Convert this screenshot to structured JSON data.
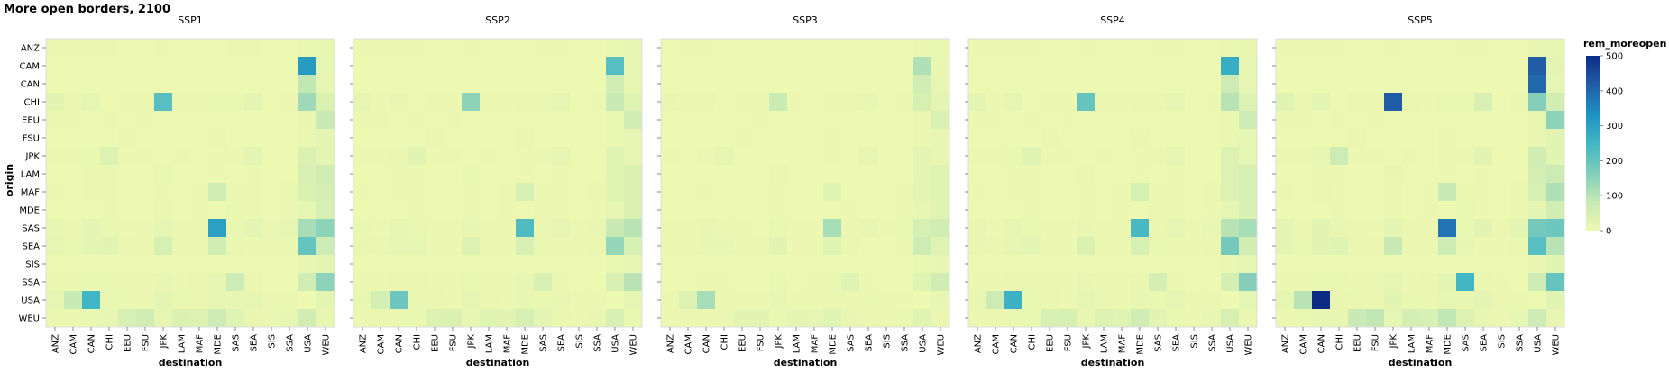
{
  "chart_data": {
    "type": "heatmap",
    "title": "More open borders, 2100",
    "facets": [
      "SSP1",
      "SSP2",
      "SSP3",
      "SSP4",
      "SSP5"
    ],
    "xlabel": "destination",
    "ylabel": "origin",
    "x_categories": [
      "ANZ",
      "CAM",
      "CAN",
      "CHI",
      "EEU",
      "FSU",
      "JPK",
      "LAM",
      "MAF",
      "MDE",
      "SAS",
      "SEA",
      "SIS",
      "SSA",
      "USA",
      "WEU"
    ],
    "y_categories": [
      "ANZ",
      "CAM",
      "CAN",
      "CHI",
      "EEU",
      "FSU",
      "JPK",
      "LAM",
      "MAF",
      "MDE",
      "SAS",
      "SEA",
      "SIS",
      "SSA",
      "USA",
      "WEU"
    ],
    "color_field": "rem_moreopen",
    "color_domain": [
      0,
      500
    ],
    "color_ticks": [
      0,
      100,
      200,
      300,
      400,
      500
    ],
    "color_range": [
      "#edf8b1",
      "#c7e9b4",
      "#7fcdbb",
      "#41b6c4",
      "#1d91c0",
      "#225ea8",
      "#0c2c84"
    ],
    "values": {
      "SSP1": [
        [
          2,
          3,
          3,
          2,
          1,
          1,
          2,
          1,
          1,
          1,
          2,
          2,
          1,
          1,
          8,
          10
        ],
        [
          1,
          1,
          1,
          1,
          1,
          1,
          1,
          1,
          1,
          1,
          1,
          1,
          1,
          1,
          310,
          18
        ],
        [
          1,
          1,
          1,
          1,
          1,
          1,
          1,
          1,
          1,
          1,
          1,
          1,
          1,
          1,
          90,
          16
        ],
        [
          25,
          4,
          18,
          1,
          3,
          4,
          220,
          4,
          2,
          6,
          6,
          20,
          1,
          3,
          130,
          40
        ],
        [
          2,
          2,
          1,
          2,
          1,
          3,
          1,
          1,
          1,
          1,
          1,
          1,
          1,
          1,
          10,
          80
        ],
        [
          1,
          1,
          1,
          1,
          4,
          1,
          1,
          1,
          1,
          4,
          1,
          1,
          1,
          1,
          8,
          20
        ],
        [
          3,
          2,
          8,
          35,
          2,
          2,
          1,
          2,
          1,
          3,
          2,
          20,
          1,
          1,
          40,
          20
        ],
        [
          1,
          1,
          2,
          2,
          1,
          1,
          8,
          1,
          1,
          2,
          1,
          2,
          1,
          1,
          45,
          60
        ],
        [
          2,
          1,
          3,
          2,
          1,
          1,
          3,
          1,
          2,
          60,
          2,
          2,
          1,
          6,
          40,
          55
        ],
        [
          1,
          1,
          1,
          2,
          1,
          1,
          4,
          1,
          2,
          1,
          6,
          2,
          1,
          4,
          18,
          50
        ],
        [
          12,
          4,
          20,
          8,
          3,
          2,
          15,
          4,
          4,
          300,
          6,
          20,
          4,
          15,
          120,
          150
        ],
        [
          14,
          6,
          20,
          25,
          4,
          3,
          50,
          4,
          3,
          60,
          8,
          2,
          2,
          6,
          200,
          70
        ],
        [
          1,
          1,
          1,
          1,
          1,
          1,
          1,
          1,
          1,
          1,
          1,
          1,
          1,
          1,
          10,
          20
        ],
        [
          2,
          2,
          6,
          6,
          2,
          2,
          12,
          2,
          4,
          15,
          70,
          4,
          1,
          1,
          60,
          150
        ],
        [
          14,
          80,
          250,
          8,
          6,
          4,
          20,
          6,
          4,
          14,
          10,
          16,
          4,
          6,
          1,
          20
        ],
        [
          4,
          5,
          8,
          10,
          50,
          60,
          15,
          40,
          35,
          70,
          30,
          10,
          4,
          15,
          60,
          10
        ]
      ],
      "SSP2": [
        [
          2,
          3,
          3,
          2,
          1,
          1,
          2,
          1,
          1,
          1,
          2,
          2,
          1,
          1,
          8,
          10
        ],
        [
          1,
          1,
          1,
          1,
          1,
          1,
          1,
          1,
          1,
          1,
          1,
          1,
          1,
          1,
          220,
          15
        ],
        [
          1,
          1,
          1,
          1,
          1,
          1,
          1,
          1,
          1,
          1,
          1,
          1,
          1,
          1,
          60,
          14
        ],
        [
          15,
          3,
          12,
          1,
          2,
          3,
          150,
          3,
          2,
          5,
          5,
          14,
          1,
          2,
          80,
          30
        ],
        [
          2,
          2,
          1,
          2,
          1,
          3,
          1,
          1,
          1,
          1,
          1,
          1,
          1,
          1,
          8,
          60
        ],
        [
          1,
          1,
          1,
          1,
          4,
          1,
          1,
          1,
          1,
          4,
          1,
          1,
          1,
          1,
          6,
          16
        ],
        [
          2,
          2,
          6,
          25,
          2,
          2,
          1,
          2,
          1,
          3,
          2,
          14,
          1,
          1,
          30,
          16
        ],
        [
          1,
          1,
          2,
          2,
          1,
          1,
          6,
          1,
          1,
          2,
          1,
          2,
          1,
          1,
          30,
          40
        ],
        [
          2,
          1,
          3,
          2,
          1,
          1,
          3,
          1,
          2,
          45,
          2,
          2,
          1,
          5,
          30,
          40
        ],
        [
          1,
          1,
          1,
          2,
          1,
          1,
          3,
          1,
          2,
          1,
          5,
          2,
          1,
          3,
          14,
          40
        ],
        [
          8,
          3,
          14,
          6,
          2,
          2,
          10,
          3,
          3,
          230,
          5,
          14,
          3,
          10,
          80,
          100
        ],
        [
          10,
          5,
          14,
          18,
          3,
          2,
          35,
          3,
          2,
          45,
          6,
          2,
          2,
          5,
          140,
          50
        ],
        [
          1,
          1,
          1,
          1,
          1,
          1,
          1,
          1,
          1,
          1,
          1,
          1,
          1,
          1,
          8,
          16
        ],
        [
          2,
          2,
          5,
          5,
          2,
          2,
          8,
          2,
          3,
          10,
          45,
          3,
          1,
          1,
          45,
          100
        ],
        [
          10,
          55,
          190,
          6,
          5,
          3,
          14,
          5,
          3,
          10,
          8,
          12,
          3,
          5,
          1,
          16
        ],
        [
          3,
          4,
          6,
          8,
          35,
          40,
          10,
          30,
          25,
          50,
          20,
          8,
          3,
          10,
          45,
          8
        ]
      ],
      "SSP3": [
        [
          1,
          2,
          2,
          1,
          1,
          1,
          1,
          1,
          1,
          1,
          1,
          1,
          1,
          1,
          5,
          6
        ],
        [
          1,
          1,
          1,
          1,
          1,
          1,
          1,
          1,
          1,
          1,
          1,
          1,
          1,
          1,
          110,
          10
        ],
        [
          1,
          1,
          1,
          1,
          1,
          1,
          1,
          1,
          1,
          1,
          1,
          1,
          1,
          1,
          60,
          10
        ],
        [
          10,
          2,
          8,
          1,
          2,
          2,
          75,
          2,
          1,
          3,
          4,
          10,
          1,
          2,
          50,
          20
        ],
        [
          1,
          1,
          1,
          1,
          1,
          2,
          1,
          1,
          1,
          1,
          1,
          1,
          1,
          1,
          5,
          40
        ],
        [
          1,
          1,
          1,
          1,
          3,
          1,
          1,
          1,
          1,
          3,
          1,
          1,
          1,
          1,
          4,
          10
        ],
        [
          2,
          1,
          4,
          15,
          1,
          1,
          1,
          1,
          1,
          2,
          1,
          10,
          1,
          1,
          20,
          10
        ],
        [
          1,
          1,
          1,
          1,
          1,
          1,
          4,
          1,
          1,
          1,
          1,
          1,
          1,
          1,
          20,
          30
        ],
        [
          1,
          1,
          2,
          1,
          1,
          1,
          2,
          1,
          1,
          30,
          1,
          1,
          1,
          3,
          20,
          30
        ],
        [
          1,
          1,
          1,
          1,
          1,
          1,
          2,
          1,
          1,
          1,
          3,
          1,
          1,
          2,
          10,
          30
        ],
        [
          6,
          2,
          10,
          4,
          2,
          1,
          6,
          2,
          2,
          120,
          4,
          10,
          2,
          6,
          50,
          60
        ],
        [
          6,
          3,
          10,
          12,
          2,
          2,
          24,
          2,
          2,
          30,
          4,
          1,
          1,
          3,
          70,
          30
        ],
        [
          1,
          1,
          1,
          1,
          1,
          1,
          1,
          1,
          1,
          1,
          1,
          1,
          1,
          1,
          6,
          10
        ],
        [
          1,
          1,
          3,
          3,
          1,
          1,
          6,
          1,
          2,
          8,
          30,
          2,
          1,
          1,
          30,
          60
        ],
        [
          6,
          35,
          120,
          4,
          3,
          2,
          10,
          3,
          2,
          6,
          5,
          8,
          2,
          3,
          1,
          10
        ],
        [
          2,
          3,
          4,
          5,
          24,
          25,
          6,
          20,
          15,
          30,
          12,
          5,
          2,
          6,
          30,
          5
        ]
      ],
      "SSP4": [
        [
          2,
          3,
          3,
          2,
          1,
          1,
          2,
          1,
          1,
          1,
          2,
          2,
          1,
          1,
          8,
          10
        ],
        [
          1,
          1,
          1,
          1,
          1,
          1,
          1,
          1,
          1,
          1,
          1,
          1,
          1,
          1,
          270,
          16
        ],
        [
          1,
          1,
          1,
          1,
          1,
          1,
          1,
          1,
          1,
          1,
          1,
          1,
          1,
          1,
          70,
          14
        ],
        [
          20,
          3,
          14,
          1,
          3,
          3,
          200,
          3,
          2,
          5,
          5,
          16,
          1,
          2,
          100,
          35
        ],
        [
          2,
          2,
          1,
          2,
          1,
          3,
          1,
          1,
          1,
          1,
          1,
          1,
          1,
          1,
          8,
          70
        ],
        [
          1,
          1,
          1,
          1,
          4,
          1,
          1,
          1,
          1,
          4,
          1,
          1,
          1,
          1,
          6,
          18
        ],
        [
          2,
          2,
          6,
          30,
          2,
          2,
          1,
          2,
          1,
          3,
          2,
          16,
          1,
          1,
          35,
          18
        ],
        [
          1,
          1,
          2,
          2,
          1,
          1,
          6,
          1,
          1,
          2,
          1,
          2,
          1,
          1,
          35,
          50
        ],
        [
          2,
          1,
          3,
          2,
          1,
          1,
          3,
          1,
          2,
          50,
          2,
          2,
          1,
          5,
          35,
          50
        ],
        [
          1,
          1,
          1,
          2,
          1,
          1,
          3,
          1,
          2,
          1,
          5,
          2,
          1,
          3,
          15,
          45
        ],
        [
          10,
          3,
          16,
          6,
          2,
          2,
          12,
          3,
          3,
          240,
          5,
          16,
          3,
          12,
          100,
          120
        ],
        [
          12,
          5,
          16,
          20,
          3,
          2,
          40,
          3,
          2,
          50,
          6,
          2,
          2,
          5,
          180,
          60
        ],
        [
          1,
          1,
          1,
          1,
          1,
          1,
          1,
          1,
          1,
          1,
          1,
          1,
          1,
          1,
          8,
          18
        ],
        [
          2,
          2,
          5,
          5,
          2,
          2,
          10,
          2,
          3,
          12,
          55,
          3,
          1,
          1,
          55,
          160
        ],
        [
          12,
          70,
          260,
          6,
          5,
          3,
          16,
          5,
          3,
          12,
          8,
          14,
          3,
          5,
          1,
          18
        ],
        [
          3,
          4,
          6,
          8,
          45,
          50,
          12,
          35,
          30,
          60,
          24,
          8,
          3,
          12,
          50,
          8
        ]
      ],
      "SSP5": [
        [
          2,
          3,
          3,
          2,
          1,
          1,
          2,
          1,
          1,
          1,
          2,
          2,
          1,
          1,
          10,
          12
        ],
        [
          1,
          1,
          1,
          1,
          1,
          1,
          1,
          1,
          1,
          1,
          1,
          1,
          1,
          1,
          420,
          20
        ],
        [
          1,
          1,
          1,
          1,
          1,
          1,
          1,
          1,
          1,
          1,
          1,
          1,
          1,
          1,
          400,
          18
        ],
        [
          30,
          5,
          20,
          1,
          4,
          5,
          420,
          5,
          3,
          8,
          8,
          45,
          1,
          4,
          160,
          60
        ],
        [
          2,
          2,
          1,
          2,
          1,
          3,
          1,
          1,
          1,
          1,
          1,
          1,
          1,
          1,
          12,
          150
        ],
        [
          1,
          1,
          1,
          1,
          5,
          1,
          1,
          1,
          1,
          5,
          1,
          1,
          1,
          1,
          10,
          25
        ],
        [
          4,
          3,
          10,
          70,
          3,
          3,
          1,
          3,
          1,
          4,
          3,
          24,
          1,
          1,
          60,
          25
        ],
        [
          1,
          1,
          2,
          2,
          1,
          1,
          10,
          1,
          1,
          2,
          1,
          2,
          1,
          1,
          55,
          70
        ],
        [
          2,
          1,
          4,
          2,
          1,
          1,
          4,
          1,
          2,
          80,
          2,
          2,
          1,
          8,
          50,
          110
        ],
        [
          1,
          1,
          1,
          2,
          1,
          1,
          5,
          1,
          2,
          1,
          8,
          2,
          1,
          5,
          20,
          60
        ],
        [
          20,
          5,
          25,
          10,
          4,
          3,
          20,
          5,
          5,
          380,
          8,
          25,
          5,
          20,
          180,
          190
        ],
        [
          20,
          8,
          25,
          30,
          5,
          4,
          80,
          5,
          4,
          70,
          10,
          3,
          3,
          8,
          220,
          100
        ],
        [
          1,
          1,
          1,
          1,
          1,
          1,
          1,
          1,
          1,
          1,
          1,
          1,
          1,
          1,
          12,
          25
        ],
        [
          3,
          3,
          8,
          8,
          3,
          3,
          15,
          3,
          5,
          20,
          250,
          5,
          2,
          1,
          70,
          200
        ],
        [
          18,
          100,
          560,
          10,
          8,
          5,
          25,
          8,
          5,
          18,
          12,
          20,
          5,
          8,
          1,
          25
        ],
        [
          5,
          6,
          10,
          12,
          80,
          90,
          18,
          55,
          45,
          90,
          35,
          12,
          5,
          18,
          70,
          12
        ]
      ]
    }
  }
}
